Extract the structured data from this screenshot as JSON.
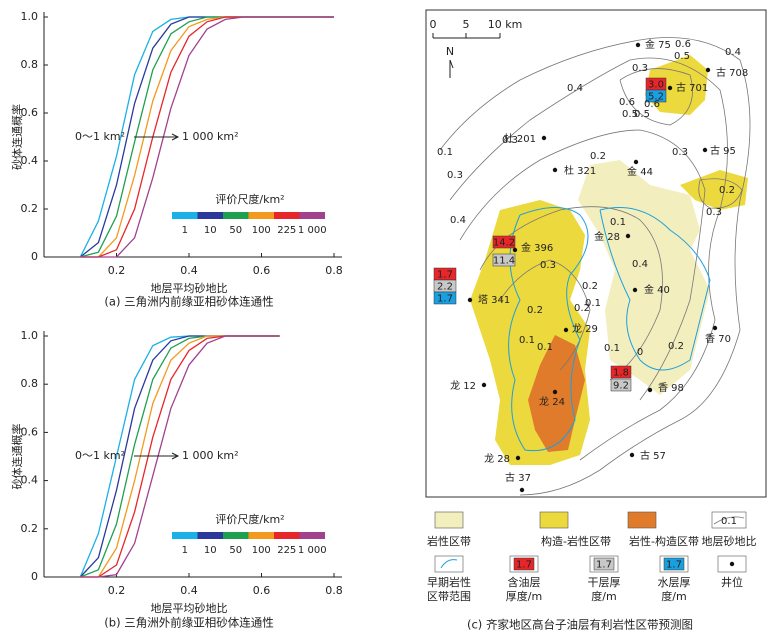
{
  "chart_data": [
    {
      "type": "line",
      "title": "(a) 三角洲内前缘亚相砂体连通性",
      "xlabel": "地层平均砂地比",
      "ylabel": "砂体连通概率",
      "x": [
        0.1,
        0.15,
        0.2,
        0.25,
        0.3,
        0.35,
        0.4,
        0.45,
        0.5,
        0.55,
        0.6,
        0.65,
        0.7,
        0.75,
        0.8
      ],
      "series": [
        {
          "name": "1",
          "color": "#1ab0e8",
          "values": [
            0,
            0.15,
            0.42,
            0.76,
            0.94,
            0.99,
            1,
            1,
            1,
            1,
            1,
            1,
            1,
            1,
            1
          ]
        },
        {
          "name": "10",
          "color": "#2a3a9c",
          "values": [
            0,
            0.06,
            0.3,
            0.64,
            0.87,
            0.97,
            1,
            1,
            1,
            1,
            1,
            1,
            1,
            1,
            1
          ]
        },
        {
          "name": "50",
          "color": "#1fa050",
          "values": [
            0,
            0.02,
            0.17,
            0.48,
            0.78,
            0.93,
            0.98,
            1,
            1,
            1,
            1,
            1,
            1,
            1,
            1
          ]
        },
        {
          "name": "100",
          "color": "#f39a1e",
          "values": [
            0,
            0,
            0.08,
            0.34,
            0.65,
            0.86,
            0.96,
            0.99,
            1,
            1,
            1,
            1,
            1,
            1,
            1
          ]
        },
        {
          "name": "225",
          "color": "#e8262a",
          "values": [
            0,
            0,
            0.03,
            0.2,
            0.5,
            0.77,
            0.92,
            0.98,
            1,
            1,
            1,
            1,
            1,
            1,
            1
          ]
        },
        {
          "name": "1 000",
          "color": "#a0428e",
          "values": [
            0,
            0,
            0,
            0.08,
            0.33,
            0.62,
            0.84,
            0.95,
            0.99,
            1,
            1,
            1,
            1,
            1,
            1
          ]
        }
      ],
      "xlim": [
        0,
        0.8
      ],
      "ylim": [
        0,
        1
      ],
      "xticks": [
        0.2,
        0.4,
        0.6,
        0.8
      ],
      "yticks": [
        0,
        0.2,
        0.4,
        0.6,
        0.8,
        {
          "value": 1,
          "label": "1.0"
        }
      ],
      "legend_title": "评价尺度/km²",
      "annotations": [
        "0～1 km²",
        "1 000 km²"
      ]
    },
    {
      "type": "line",
      "title": "(b) 三角洲外前缘亚相砂体连通性",
      "xlabel": "地层平均砂地比",
      "ylabel": "砂体连通概率",
      "x": [
        0.1,
        0.15,
        0.2,
        0.25,
        0.3,
        0.35,
        0.4,
        0.45,
        0.5,
        0.55,
        0.6,
        0.65,
        0.7,
        0.75,
        0.8
      ],
      "series": [
        {
          "name": "1",
          "color": "#1ab0e8",
          "values": [
            0,
            0.18,
            0.5,
            0.82,
            0.96,
            0.995,
            1,
            1,
            1,
            1,
            1,
            1,
            null,
            null,
            null
          ]
        },
        {
          "name": "10",
          "color": "#2a3a9c",
          "values": [
            0,
            0.08,
            0.36,
            0.7,
            0.9,
            0.98,
            1,
            1,
            1,
            1,
            1,
            1,
            null,
            null,
            null
          ]
        },
        {
          "name": "50",
          "color": "#1fa050",
          "values": [
            0,
            0.03,
            0.22,
            0.55,
            0.82,
            0.95,
            0.99,
            1,
            1,
            1,
            1,
            1,
            null,
            null,
            null
          ]
        },
        {
          "name": "100",
          "color": "#f39a1e",
          "values": [
            0,
            0,
            0.12,
            0.4,
            0.72,
            0.9,
            0.97,
            1,
            1,
            1,
            1,
            1,
            null,
            null,
            null
          ]
        },
        {
          "name": "225",
          "color": "#e8262a",
          "values": [
            0,
            0,
            0.05,
            0.27,
            0.58,
            0.82,
            0.94,
            0.99,
            1,
            1,
            1,
            1,
            null,
            null,
            null
          ]
        },
        {
          "name": "1 000",
          "color": "#a0428e",
          "values": [
            0,
            0,
            0.01,
            0.14,
            0.42,
            0.7,
            0.88,
            0.97,
            1,
            1,
            1,
            1,
            null,
            null,
            null
          ]
        }
      ],
      "xlim": [
        0,
        0.8
      ],
      "ylim": [
        0,
        1
      ],
      "xticks": [
        0.2,
        0.4,
        0.6,
        0.8
      ],
      "yticks": [
        0,
        0.2,
        0.4,
        0.6,
        0.8,
        {
          "value": 1,
          "label": "1.0"
        }
      ],
      "legend_title": "评价尺度/km²",
      "annotations": [
        "0～1 km²",
        "1 000 km²"
      ]
    }
  ],
  "map": {
    "title": "(c) 齐家地区高台子油层有利岩性区带预测图",
    "scale": [
      "0",
      "5",
      "10 km"
    ],
    "north": "N",
    "wells": [
      "金 75",
      "古 708",
      "古 701",
      "杜 201",
      "杜 321",
      "金 44",
      "古 95",
      "金 396",
      "金 28",
      "金 40",
      "塔 341",
      "龙 29",
      "龙 12",
      "龙 24",
      "香 70",
      "香 98",
      "龙 28",
      "古 57",
      "古 37"
    ],
    "thickness_boxes": [
      "3.0",
      "5.2",
      "14.2",
      "11.4",
      "1.7",
      "2.2",
      "1.7",
      "1.8",
      "9.2"
    ],
    "contour_labels": [
      "0.6",
      "0.5",
      "0.4",
      "0.3",
      "0.6",
      "0.5",
      "0.6",
      "0.5",
      "0.4",
      "0.3",
      "0.1",
      "0.3",
      "0.4",
      "0.2",
      "0.3",
      "0.2",
      "0.3",
      "0.1",
      "0.4",
      "0.3",
      "0.2",
      "0.1",
      "0.2",
      "0.2",
      "0.1",
      "0.1",
      "0.1",
      "0",
      "0.2"
    ],
    "legend": [
      {
        "label": [
          "岩性区带"
        ]
      },
      {
        "label": [
          "构造-岩性区带"
        ]
      },
      {
        "label": [
          "岩性-构造区带"
        ]
      },
      {
        "label": [
          "地层砂地比"
        ],
        "sample": "0.1"
      },
      {
        "label": [
          "早期岩性",
          "区带范围"
        ]
      },
      {
        "label": [
          "含油层",
          "厚度/m"
        ],
        "sample": "1.7"
      },
      {
        "label": [
          "干层厚",
          "度/m"
        ],
        "sample": "1.7"
      },
      {
        "label": [
          "水层厚",
          "度/m"
        ],
        "sample": "1.7"
      },
      {
        "label": [
          "井位"
        ]
      }
    ]
  }
}
